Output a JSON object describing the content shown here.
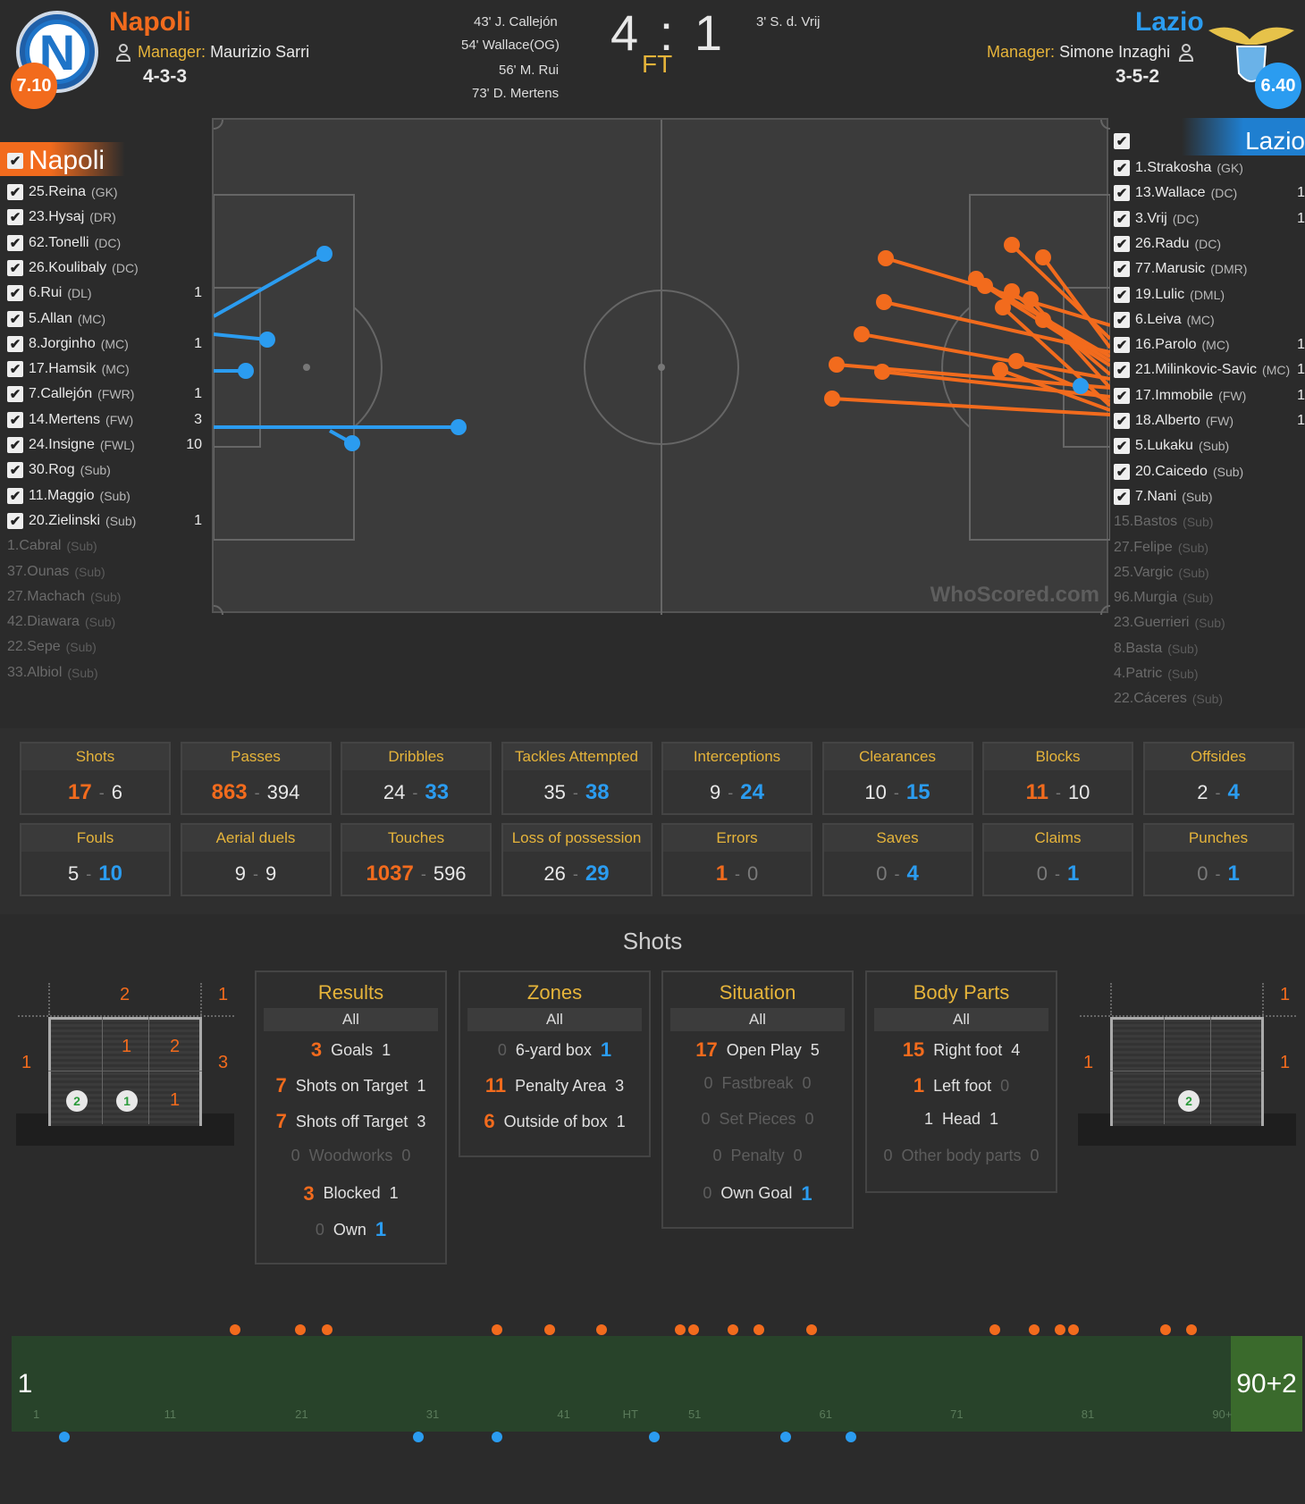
{
  "home": {
    "name": "Napoli",
    "rating": "7.10",
    "manager_label": "Manager:",
    "manager": "Maurizio Sarri",
    "formation": "4-3-3",
    "badge_letter": "N",
    "goals": [
      "43' J. Callejón",
      "54' Wallace(OG)",
      "56' M. Rui",
      "73' D. Mertens"
    ],
    "color": "#f26b1d"
  },
  "away": {
    "name": "Lazio",
    "rating": "6.40",
    "manager_label": "Manager:",
    "manager": "Simone Inzaghi",
    "formation": "3-5-2",
    "goals": [
      "3' S. d. Vrij"
    ],
    "color": "#2b9cf0"
  },
  "score": "4 : 1",
  "status": "FT",
  "home_list": {
    "header": "Napoli",
    "players": [
      {
        "name": "25.Reina",
        "pos": "(GK)",
        "count": ""
      },
      {
        "name": "23.Hysaj",
        "pos": "(DR)",
        "count": ""
      },
      {
        "name": "62.Tonelli",
        "pos": "(DC)",
        "count": ""
      },
      {
        "name": "26.Koulibaly",
        "pos": "(DC)",
        "count": ""
      },
      {
        "name": "6.Rui",
        "pos": "(DL)",
        "count": "1"
      },
      {
        "name": "5.Allan",
        "pos": "(MC)",
        "count": ""
      },
      {
        "name": "8.Jorginho",
        "pos": "(MC)",
        "count": "1"
      },
      {
        "name": "17.Hamsik",
        "pos": "(MC)",
        "count": ""
      },
      {
        "name": "7.Callejón",
        "pos": "(FWR)",
        "count": "1"
      },
      {
        "name": "14.Mertens",
        "pos": "(FW)",
        "count": "3"
      },
      {
        "name": "24.Insigne",
        "pos": "(FWL)",
        "count": "10"
      },
      {
        "name": "30.Rog",
        "pos": "(Sub)",
        "count": ""
      },
      {
        "name": "11.Maggio",
        "pos": "(Sub)",
        "count": ""
      },
      {
        "name": "20.Zielinski",
        "pos": "(Sub)",
        "count": "1"
      }
    ],
    "unused": [
      {
        "name": "1.Cabral",
        "pos": "(Sub)"
      },
      {
        "name": "37.Ounas",
        "pos": "(Sub)"
      },
      {
        "name": "27.Machach",
        "pos": "(Sub)"
      },
      {
        "name": "42.Diawara",
        "pos": "(Sub)"
      },
      {
        "name": "22.Sepe",
        "pos": "(Sub)"
      },
      {
        "name": "33.Albiol",
        "pos": "(Sub)"
      }
    ]
  },
  "away_list": {
    "header": "Lazio",
    "players": [
      {
        "name": "1.Strakosha",
        "pos": "(GK)",
        "count": ""
      },
      {
        "name": "13.Wallace",
        "pos": "(DC)",
        "count": "1"
      },
      {
        "name": "3.Vrij",
        "pos": "(DC)",
        "count": "1"
      },
      {
        "name": "26.Radu",
        "pos": "(DC)",
        "count": ""
      },
      {
        "name": "77.Marusic",
        "pos": "(DMR)",
        "count": ""
      },
      {
        "name": "19.Lulic",
        "pos": "(DML)",
        "count": ""
      },
      {
        "name": "6.Leiva",
        "pos": "(MC)",
        "count": ""
      },
      {
        "name": "16.Parolo",
        "pos": "(MC)",
        "count": "1"
      },
      {
        "name": "21.Milinkovic-Savic",
        "pos": "(MC)",
        "count": "1"
      },
      {
        "name": "17.Immobile",
        "pos": "(FW)",
        "count": "1"
      },
      {
        "name": "18.Alberto",
        "pos": "(FW)",
        "count": "1"
      },
      {
        "name": "5.Lukaku",
        "pos": "(Sub)",
        "count": ""
      },
      {
        "name": "20.Caicedo",
        "pos": "(Sub)",
        "count": ""
      },
      {
        "name": "7.Nani",
        "pos": "(Sub)",
        "count": ""
      }
    ],
    "unused": [
      {
        "name": "15.Bastos",
        "pos": "(Sub)"
      },
      {
        "name": "27.Felipe",
        "pos": "(Sub)"
      },
      {
        "name": "25.Vargic",
        "pos": "(Sub)"
      },
      {
        "name": "96.Murgia",
        "pos": "(Sub)"
      },
      {
        "name": "23.Guerrieri",
        "pos": "(Sub)"
      },
      {
        "name": "8.Basta",
        "pos": "(Sub)"
      },
      {
        "name": "4.Patric",
        "pos": "(Sub)"
      },
      {
        "name": "22.Cáceres",
        "pos": "(Sub)"
      }
    ]
  },
  "watermark": "WhoScored.com",
  "stats": [
    {
      "label": "Shots",
      "home": "17",
      "away": "6",
      "lead": "home"
    },
    {
      "label": "Passes",
      "home": "863",
      "away": "394",
      "lead": "home"
    },
    {
      "label": "Dribbles",
      "home": "24",
      "away": "33",
      "lead": "away"
    },
    {
      "label": "Tackles Attempted",
      "home": "35",
      "away": "38",
      "lead": "away"
    },
    {
      "label": "Interceptions",
      "home": "9",
      "away": "24",
      "lead": "away"
    },
    {
      "label": "Clearances",
      "home": "10",
      "away": "15",
      "lead": "away"
    },
    {
      "label": "Blocks",
      "home": "11",
      "away": "10",
      "lead": "home"
    },
    {
      "label": "Offsides",
      "home": "2",
      "away": "4",
      "lead": "away"
    },
    {
      "label": "Fouls",
      "home": "5",
      "away": "10",
      "lead": "away"
    },
    {
      "label": "Aerial duels",
      "home": "9",
      "away": "9",
      "lead": "none"
    },
    {
      "label": "Touches",
      "home": "1037",
      "away": "596",
      "lead": "home"
    },
    {
      "label": "Loss of possession",
      "home": "26",
      "away": "29",
      "lead": "away"
    },
    {
      "label": "Errors",
      "home": "1",
      "away": "0",
      "lead": "home"
    },
    {
      "label": "Saves",
      "home": "0",
      "away": "4",
      "lead": "away"
    },
    {
      "label": "Claims",
      "home": "0",
      "away": "1",
      "lead": "away"
    },
    {
      "label": "Punches",
      "home": "0",
      "away": "1",
      "lead": "away"
    }
  ],
  "shots_title": "Shots",
  "panels": [
    {
      "title": "Results",
      "all": "All",
      "rows": [
        {
          "label": "Goals",
          "home": "3",
          "away": "1"
        },
        {
          "label": "Shots on Target",
          "home": "7",
          "away": "1"
        },
        {
          "label": "Shots off Target",
          "home": "7",
          "away": "3"
        },
        {
          "label": "Woodworks",
          "home": "0",
          "away": "0"
        },
        {
          "label": "Blocked",
          "home": "3",
          "away": "1"
        },
        {
          "label": "Own",
          "home": "0",
          "away": "1"
        }
      ]
    },
    {
      "title": "Zones",
      "all": "All",
      "rows": [
        {
          "label": "6-yard box",
          "home": "0",
          "away": "1"
        },
        {
          "label": "Penalty Area",
          "home": "11",
          "away": "3"
        },
        {
          "label": "Outside of box",
          "home": "6",
          "away": "1"
        }
      ]
    },
    {
      "title": "Situation",
      "all": "All",
      "rows": [
        {
          "label": "Open Play",
          "home": "17",
          "away": "5"
        },
        {
          "label": "Fastbreak",
          "home": "0",
          "away": "0"
        },
        {
          "label": "Set Pieces",
          "home": "0",
          "away": "0"
        },
        {
          "label": "Penalty",
          "home": "0",
          "away": "0"
        },
        {
          "label": "Own Goal",
          "home": "0",
          "away": "1"
        }
      ]
    },
    {
      "title": "Body Parts",
      "all": "All",
      "rows": [
        {
          "label": "Right foot",
          "home": "15",
          "away": "4"
        },
        {
          "label": "Left foot",
          "home": "1",
          "away": "0"
        },
        {
          "label": "Head",
          "home": "1",
          "away": "1"
        },
        {
          "label": "Other body parts",
          "home": "0",
          "away": "0"
        }
      ]
    }
  ],
  "goalmap_home": {
    "top_mid": "2",
    "top_right": "1",
    "left": "1",
    "right": "3",
    "cells": [
      "1",
      "2",
      "1"
    ],
    "balls": [
      "2",
      "1"
    ]
  },
  "goalmap_away": {
    "top_right": "1",
    "left": "1",
    "right": "1",
    "balls": [
      "2"
    ]
  },
  "timeline": {
    "start": "1",
    "end": "90+2",
    "ticks": [
      "1",
      "11",
      "21",
      "31",
      "41",
      "HT",
      "51",
      "61",
      "71",
      "81",
      "90+"
    ],
    "home_minutes": [
      16,
      21,
      23,
      36,
      40,
      44,
      50,
      51,
      54,
      56,
      60,
      74,
      77,
      79,
      80,
      87,
      89
    ],
    "away_minutes": [
      3,
      30,
      36,
      48,
      58,
      63
    ]
  },
  "icons": {
    "manager": "person-icon",
    "check": "checkbox-icon"
  }
}
